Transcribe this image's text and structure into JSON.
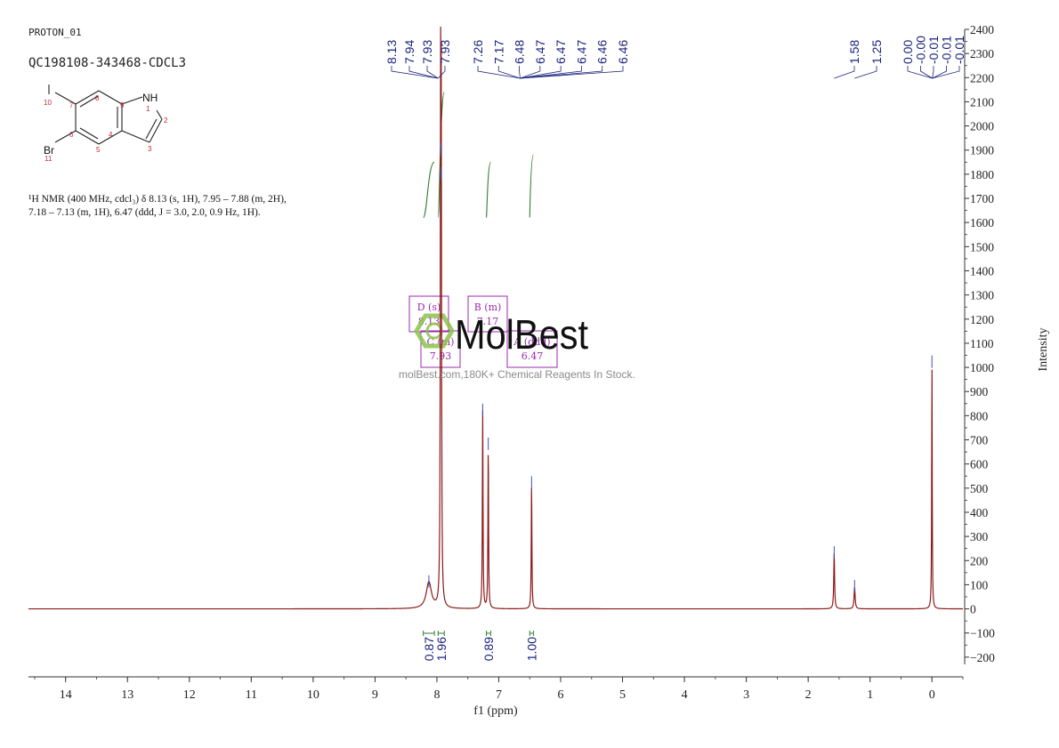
{
  "header": {
    "experiment": "PROTON_01",
    "sample": "QC198108-343468-CDCL3"
  },
  "nmr_description": {
    "line1": "¹H NMR (400 MHz, cdcl₃) δ 8.13 (s, 1H), 7.95 – 7.88 (m, 2H),",
    "line2": "7.18 – 7.13 (m, 1H), 6.47 (ddd, J = 3.0, 2.0, 0.9 Hz, 1H)."
  },
  "structure": {
    "atoms": {
      "nh": "NH",
      "br": "Br",
      "n1": "1",
      "n2": "2",
      "n3": "3",
      "n4": "4",
      "n5": "5",
      "n6": "6",
      "n7": "7",
      "n8": "8",
      "n9": "9",
      "n10": "10",
      "n11": "11"
    }
  },
  "watermark": {
    "brand": "MolBest",
    "url": "molBest.com,180K+ Chemical Reagents In Stock."
  },
  "colors": {
    "spectrum": "#8b1a1a",
    "peak_labels": "#1a237e",
    "integral": "#2e7d32",
    "multiplet_box": "#9c27b0",
    "axis": "#333333",
    "watermark_green": "#8bc34a",
    "atom_number": "#c62828"
  },
  "chart_data": {
    "type": "line",
    "xlabel": "f1 (ppm)",
    "ylabel": "Intensity",
    "xlim": [
      14.6,
      -0.5
    ],
    "ylim": [
      -230,
      2400
    ],
    "x_ticks": [
      14,
      13,
      12,
      11,
      10,
      9,
      8,
      7,
      6,
      5,
      4,
      3,
      2,
      1,
      0
    ],
    "y_ticks": [
      -200,
      -100,
      0,
      100,
      200,
      300,
      400,
      500,
      600,
      700,
      800,
      900,
      1000,
      1100,
      1200,
      1300,
      1400,
      1500,
      1600,
      1700,
      1800,
      1900,
      2000,
      2100,
      2200,
      2300,
      2400
    ],
    "peaks": [
      {
        "ppm": 8.13,
        "height": 110,
        "width": 0.05
      },
      {
        "ppm": 7.94,
        "height": 1900,
        "width": 0.006
      },
      {
        "ppm": 7.93,
        "height": 1800,
        "width": 0.006
      },
      {
        "ppm": 7.26,
        "height": 820,
        "width": 0.006
      },
      {
        "ppm": 7.17,
        "height": 680,
        "width": 0.006
      },
      {
        "ppm": 6.47,
        "height": 520,
        "width": 0.006
      },
      {
        "ppm": 1.58,
        "height": 230,
        "width": 0.008
      },
      {
        "ppm": 1.25,
        "height": 90,
        "width": 0.01
      },
      {
        "ppm": 0.0,
        "height": 1020,
        "width": 0.005
      }
    ],
    "peak_groups": [
      {
        "labels": [
          "8.13",
          "7.94",
          "7.93",
          "7.93"
        ],
        "peaks": [
          8.13,
          7.94,
          7.93,
          7.93
        ]
      },
      {
        "labels": [
          "7.26",
          "7.17",
          "6.48",
          "6.47",
          "6.47",
          "6.47",
          "6.46",
          "6.46"
        ],
        "peaks": [
          7.26,
          7.17,
          6.48,
          6.47,
          6.47,
          6.47,
          6.46,
          6.46
        ]
      },
      {
        "labels": [
          "1.58"
        ],
        "peaks": [
          1.58
        ]
      },
      {
        "labels": [
          "1.25"
        ],
        "peaks": [
          1.25
        ]
      },
      {
        "labels": [
          "0.00",
          "-0.00",
          "-0.01",
          "-0.01",
          "-0.01"
        ],
        "peaks": [
          0.0,
          0.0,
          -0.01,
          -0.01,
          -0.01
        ]
      }
    ],
    "integrals": [
      {
        "from": 8.22,
        "to": 8.04,
        "value": "0.87",
        "curve": [
          1620,
          1850
        ]
      },
      {
        "from": 7.98,
        "to": 7.88,
        "value": "1.96",
        "curve": [
          1620,
          2140
        ]
      },
      {
        "from": 7.2,
        "to": 7.13,
        "value": "0.89",
        "curve": [
          1620,
          1850
        ]
      },
      {
        "from": 6.5,
        "to": 6.44,
        "value": "1.00",
        "curve": [
          1620,
          1880
        ]
      }
    ],
    "multiplets": [
      {
        "letter": "D",
        "type": "(s)",
        "shift": "8.13"
      },
      {
        "letter": "C",
        "type": "(m)",
        "shift": "7.93"
      },
      {
        "letter": "B",
        "type": "(m)",
        "shift": "7.17"
      },
      {
        "letter": "A",
        "type": "(ddd)",
        "shift": "6.47"
      }
    ]
  }
}
